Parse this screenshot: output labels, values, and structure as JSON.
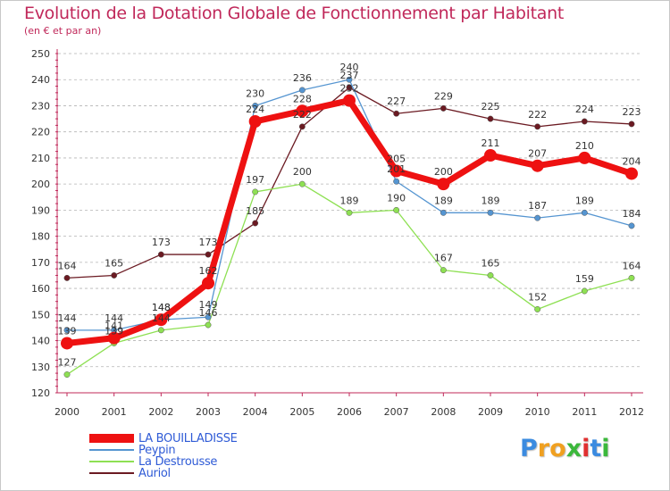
{
  "title": "Evolution de la Dotation Globale de Fonctionnement par Habitant",
  "subtitle": "(en € et par an)",
  "colors": {
    "title": "#c0285a",
    "axis": "#c0285a",
    "grid": "#b4b4b4",
    "tick_text": "#333333",
    "legend_text": "#2f5bd6"
  },
  "chart_data": {
    "type": "line",
    "title": "Evolution de la Dotation Globale de Fonctionnement par Habitant",
    "subtitle": "(en € et par an)",
    "xlabel": "",
    "ylabel": "",
    "categories": [
      "2000",
      "2001",
      "2002",
      "2003",
      "2004",
      "2005",
      "2006",
      "2007",
      "2008",
      "2009",
      "2010",
      "2011",
      "2012"
    ],
    "ylim": [
      120,
      250
    ],
    "yticks": [
      120,
      130,
      140,
      150,
      160,
      170,
      180,
      190,
      200,
      210,
      220,
      230,
      240,
      250
    ],
    "grid": "horizontal dashed",
    "legend_position": "bottom-left",
    "series": [
      {
        "name": "Auriol",
        "color": "#6b1a22",
        "values": [
          164,
          165,
          173,
          173,
          185,
          222,
          237,
          227,
          229,
          225,
          222,
          224,
          223
        ],
        "width": 1.3,
        "marker": 3.2
      },
      {
        "name": "La Destrousse",
        "color": "#8ee053",
        "values": [
          127,
          139,
          144,
          146,
          197,
          200,
          189,
          190,
          167,
          165,
          152,
          159,
          164
        ],
        "width": 1.3,
        "marker": 3.2
      },
      {
        "name": "Peypin",
        "color": "#5595d1",
        "values": [
          144,
          144,
          148,
          149,
          230,
          236,
          240,
          201,
          189,
          189,
          187,
          189,
          184
        ],
        "width": 1.3,
        "marker": 3.2
      },
      {
        "name": "LA BOUILLADISSE",
        "color": "#ee1111",
        "values": [
          139,
          141,
          148,
          162,
          224,
          228,
          232,
          205,
          200,
          211,
          207,
          210,
          204
        ],
        "width": 7,
        "marker": 7
      }
    ]
  },
  "legend": [
    {
      "label": "LA BOUILLADISSE",
      "color": "#ee1111",
      "thick": true
    },
    {
      "label": "Peypin",
      "color": "#5595d1",
      "thick": false
    },
    {
      "label": "La Destrousse",
      "color": "#8ee053",
      "thick": false
    },
    {
      "label": "Auriol",
      "color": "#6b1a22",
      "thick": false
    }
  ],
  "logo": {
    "letters": [
      "P",
      "r",
      "o",
      "x",
      "i",
      "t",
      "i"
    ],
    "colors": [
      "#3b8be0",
      "#f0a020",
      "#f0a020",
      "#3bb83b",
      "#e03030",
      "#3b8be0",
      "#3bb83b"
    ]
  }
}
